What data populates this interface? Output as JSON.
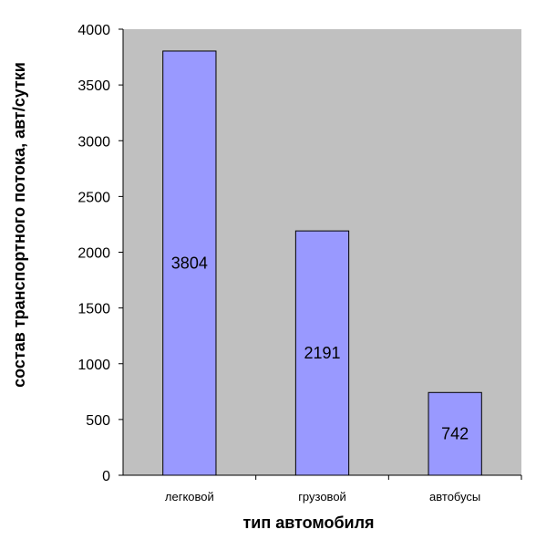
{
  "chart_data": {
    "type": "bar",
    "title": "",
    "xlabel": "тип автомобиля",
    "ylabel": "состав транспортного потока, авт/сутки",
    "categories": [
      "легковой",
      "грузовой",
      "автобусы"
    ],
    "values": [
      3804,
      2191,
      742
    ],
    "data_labels": [
      "3804",
      "2191",
      "742"
    ],
    "ylim": [
      0,
      4000
    ],
    "yticks": [
      0,
      500,
      1000,
      1500,
      2000,
      2500,
      3000,
      3500,
      4000
    ],
    "ytick_labels": [
      "0",
      "500",
      "1000",
      "1500",
      "2000",
      "2500",
      "3000",
      "3500",
      "4000"
    ],
    "grid": false,
    "legend": "none",
    "colors": {
      "bar_fill": "#9999ff",
      "bar_stroke": "#000000",
      "plot_background": "#c0c0c0",
      "axis": "#000000"
    }
  }
}
